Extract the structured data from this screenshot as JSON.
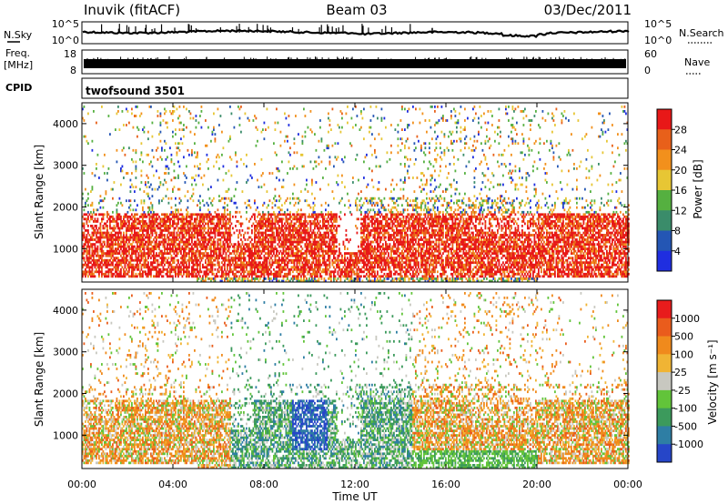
{
  "header": {
    "station": "Inuvik (fitACF)",
    "beam": "Beam 03",
    "date": "03/Dec/2011"
  },
  "noise_panel": {
    "left_label": "N.Sky",
    "left_ticks": [
      "10^5",
      "10^0"
    ],
    "right_label": "N.Search",
    "right_ticks": [
      "10^5",
      "10^0"
    ]
  },
  "freq_panel": {
    "left_label_1": "Freq.",
    "left_label_2": "[MHz]",
    "left_ticks": [
      "18",
      "8"
    ],
    "right_label": "Nave",
    "right_ticks": [
      "60",
      "0"
    ]
  },
  "cpid_panel": {
    "label": "CPID",
    "program": "twofsound 3501"
  },
  "chart_data": [
    {
      "type": "heatmap",
      "name": "power",
      "ylabel": "Slant Range [km]",
      "y_ticks": [
        "1000",
        "2000",
        "3000",
        "4000"
      ],
      "y_tick_values": [
        1000,
        2000,
        3000,
        4000
      ],
      "ylim": [
        200,
        4500
      ],
      "xlim": [
        0,
        24
      ],
      "colorbar_label": "Power [dB]",
      "colorbar_ticks": [
        "4",
        "8",
        "12",
        "16",
        "20",
        "24",
        "28"
      ],
      "colorbar_colors": [
        "#1f2ee0",
        "#2456b4",
        "#3a8c6a",
        "#55b040",
        "#e7c634",
        "#f2901c",
        "#e8601a",
        "#e81818"
      ]
    },
    {
      "type": "heatmap",
      "name": "velocity",
      "ylabel": "Slant Range [km]",
      "y_ticks": [
        "1000",
        "2000",
        "3000",
        "4000"
      ],
      "y_tick_values": [
        1000,
        2000,
        3000,
        4000
      ],
      "ylim": [
        200,
        4500
      ],
      "xlim": [
        0,
        24
      ],
      "colorbar_label": "Velocity [m s⁻¹]",
      "colorbar_ticks": [
        "1000",
        "500",
        "100",
        "25",
        "-25",
        "-100",
        "-500",
        "-1000"
      ],
      "colorbar_colors": [
        "#2646c8",
        "#2e7ea4",
        "#3c9a5c",
        "#62c43a",
        "#c8c8c0",
        "#f0b434",
        "#f08a1c",
        "#ea5c1c",
        "#e81c1c"
      ],
      "xlabel": "Time UT",
      "x_ticks": [
        "00:00",
        "04:00",
        "08:00",
        "12:00",
        "16:00",
        "20:00",
        "00:00"
      ],
      "x_tick_values": [
        0,
        4,
        8,
        12,
        16,
        20,
        24
      ]
    }
  ]
}
